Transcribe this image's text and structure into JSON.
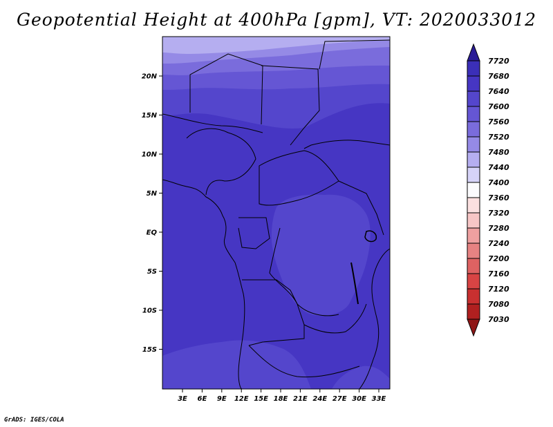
{
  "title": "Geopotential Height at 400hPa [gpm], VT: 2020033012",
  "credit": "GrADS: IGES/COLA",
  "map": {
    "lat_labels": [
      "20N",
      "15N",
      "10N",
      "5N",
      "EQ",
      "5S",
      "10S",
      "15S"
    ],
    "lon_labels": [
      "3E",
      "6E",
      "9E",
      "12E",
      "15E",
      "18E",
      "21E",
      "24E",
      "27E",
      "30E",
      "33E"
    ]
  },
  "colorbar": {
    "levels": [
      "7720",
      "7680",
      "7640",
      "7600",
      "7560",
      "7520",
      "7480",
      "7440",
      "7400",
      "7360",
      "7320",
      "7280",
      "7240",
      "7200",
      "7160",
      "7120",
      "7080",
      "7030"
    ],
    "colors": [
      "#2a1c96",
      "#3b2fb8",
      "#4636c3",
      "#5446cc",
      "#6556d4",
      "#7a6cdc",
      "#958ae6",
      "#b5aef0",
      "#d6d3f8",
      "#fbfbfd",
      "#fbe0e0",
      "#f7c6c6",
      "#eea0a0",
      "#e68282",
      "#de6262",
      "#d84444",
      "#c83030",
      "#b02020",
      "#8f1717"
    ]
  }
}
